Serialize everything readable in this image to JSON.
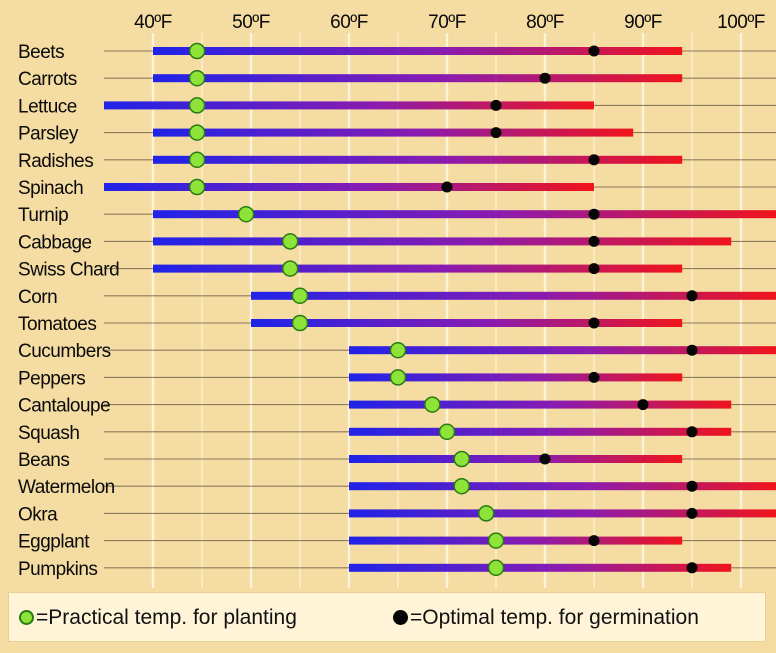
{
  "chart_data": {
    "type": "range",
    "x_ticks": [
      "40ºF",
      "50ºF",
      "60ºF",
      "70ºF",
      "80ºF",
      "90ºF",
      "100ºF"
    ],
    "x_tick_values": [
      40,
      50,
      60,
      70,
      80,
      90,
      100
    ],
    "xlim": [
      40,
      100
    ],
    "grid": true,
    "legend": {
      "position": "bottom",
      "practical_label": "=Practical temp. for planting",
      "optimal_label": "=Optimal temp. for germination"
    },
    "colors": {
      "background": "#f4dca3",
      "gridline": "#fff4d8",
      "range_start": "#1f23e8",
      "range_end": "#f0141c",
      "practical_marker": "#8ee339",
      "optimal_marker": "#050505"
    },
    "crops": [
      {
        "name": "Beets",
        "min": 40,
        "max": 94,
        "practical": 44.5,
        "optimal": 85
      },
      {
        "name": "Carrots",
        "min": 40,
        "max": 94,
        "practical": 44.5,
        "optimal": 80
      },
      {
        "name": "Lettuce",
        "min": 35,
        "max": 85,
        "practical": 44.5,
        "optimal": 75
      },
      {
        "name": "Parsley",
        "min": 40,
        "max": 89,
        "practical": 44.5,
        "optimal": 75
      },
      {
        "name": "Radishes",
        "min": 40,
        "max": 94,
        "practical": 44.5,
        "optimal": 85
      },
      {
        "name": "Spinach",
        "min": 35,
        "max": 85,
        "practical": 44.5,
        "optimal": 70
      },
      {
        "name": "Turnip",
        "min": 40,
        "max": 104,
        "practical": 49.5,
        "optimal": 85
      },
      {
        "name": "Cabbage",
        "min": 40,
        "max": 99,
        "practical": 54,
        "optimal": 85
      },
      {
        "name": "Swiss Chard",
        "min": 40,
        "max": 94,
        "practical": 54,
        "optimal": 85
      },
      {
        "name": "Corn",
        "min": 50,
        "max": 104,
        "practical": 55,
        "optimal": 95
      },
      {
        "name": "Tomatoes",
        "min": 50,
        "max": 94,
        "practical": 55,
        "optimal": 85
      },
      {
        "name": "Cucumbers",
        "min": 60,
        "max": 104,
        "practical": 65,
        "optimal": 95
      },
      {
        "name": "Peppers",
        "min": 60,
        "max": 94,
        "practical": 65,
        "optimal": 85
      },
      {
        "name": "Cantaloupe",
        "min": 60,
        "max": 99,
        "practical": 68.5,
        "optimal": 90
      },
      {
        "name": "Squash",
        "min": 60,
        "max": 99,
        "practical": 70,
        "optimal": 95
      },
      {
        "name": "Beans",
        "min": 60,
        "max": 94,
        "practical": 71.5,
        "optimal": 80
      },
      {
        "name": "Watermelon",
        "min": 60,
        "max": 104,
        "practical": 71.5,
        "optimal": 95
      },
      {
        "name": "Okra",
        "min": 60,
        "max": 104,
        "practical": 74,
        "optimal": 95
      },
      {
        "name": "Eggplant",
        "min": 60,
        "max": 94,
        "practical": 75,
        "optimal": 85
      },
      {
        "name": "Pumpkins",
        "min": 60,
        "max": 99,
        "practical": 75,
        "optimal": 95
      }
    ]
  }
}
